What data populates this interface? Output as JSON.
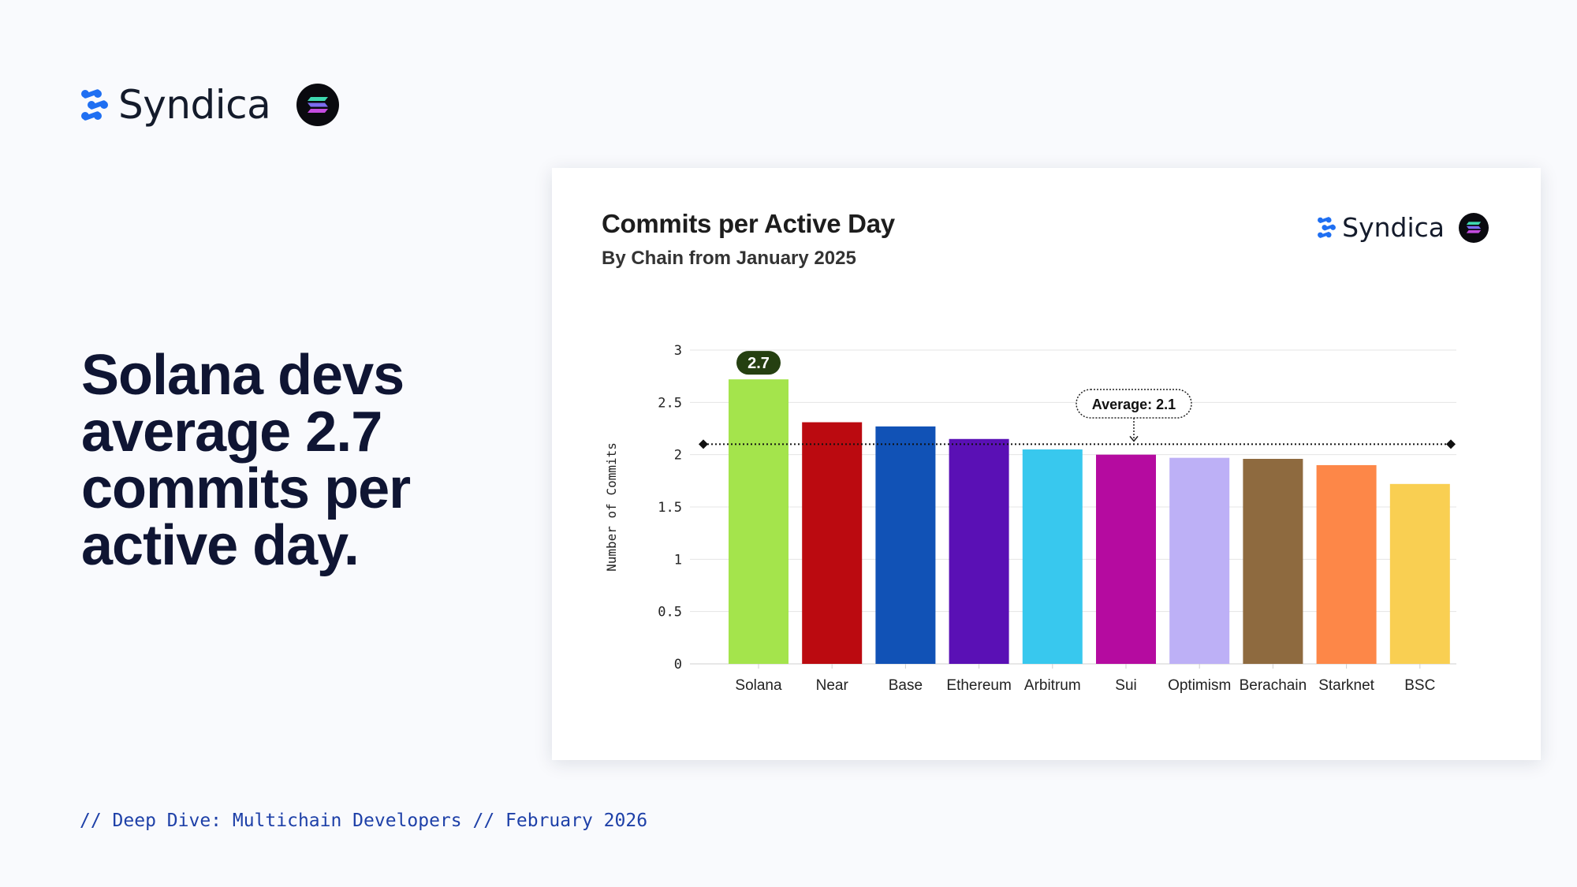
{
  "header": {
    "brand_name": "Syndica",
    "logo_icon": "syndica-logo-icon",
    "badge_icon": "solana-logo-icon"
  },
  "headline": "Solana devs average 2.7 commits per active day.",
  "footer": "// Deep Dive: Multichain Developers // February 2026",
  "colors": {
    "brand_blue": "#1f6ff2",
    "headline": "#0f1533",
    "footer": "#1e40a8"
  },
  "chart_data": {
    "type": "bar",
    "title": "Commits per Active Day",
    "subtitle": "By Chain from January 2025",
    "ylabel": "Number of Commits",
    "xlabel": "",
    "ylim": [
      0,
      3
    ],
    "yticks": [
      "0",
      "0.5",
      "1",
      "1.5",
      "2",
      "2.5",
      "3"
    ],
    "grid": true,
    "categories": [
      "Solana",
      "Near",
      "Base",
      "Ethereum",
      "Arbitrum",
      "Sui",
      "Optimism",
      "Berachain",
      "Starknet",
      "BSC"
    ],
    "values": [
      2.72,
      2.31,
      2.27,
      2.15,
      2.05,
      2.0,
      1.97,
      1.96,
      1.9,
      1.72
    ],
    "colors": [
      "#a4e44c",
      "#bb0a10",
      "#1152b6",
      "#5a10b5",
      "#38c8ee",
      "#b50ba0",
      "#bdb0f6",
      "#8e6a3f",
      "#fd8748",
      "#f9cf52"
    ],
    "data_labels": [
      {
        "category": "Solana",
        "text": "2.7",
        "color": "#254011"
      }
    ],
    "average": {
      "value": 2.1,
      "label": "Average: 2.1"
    },
    "brand_name": "Syndica"
  }
}
